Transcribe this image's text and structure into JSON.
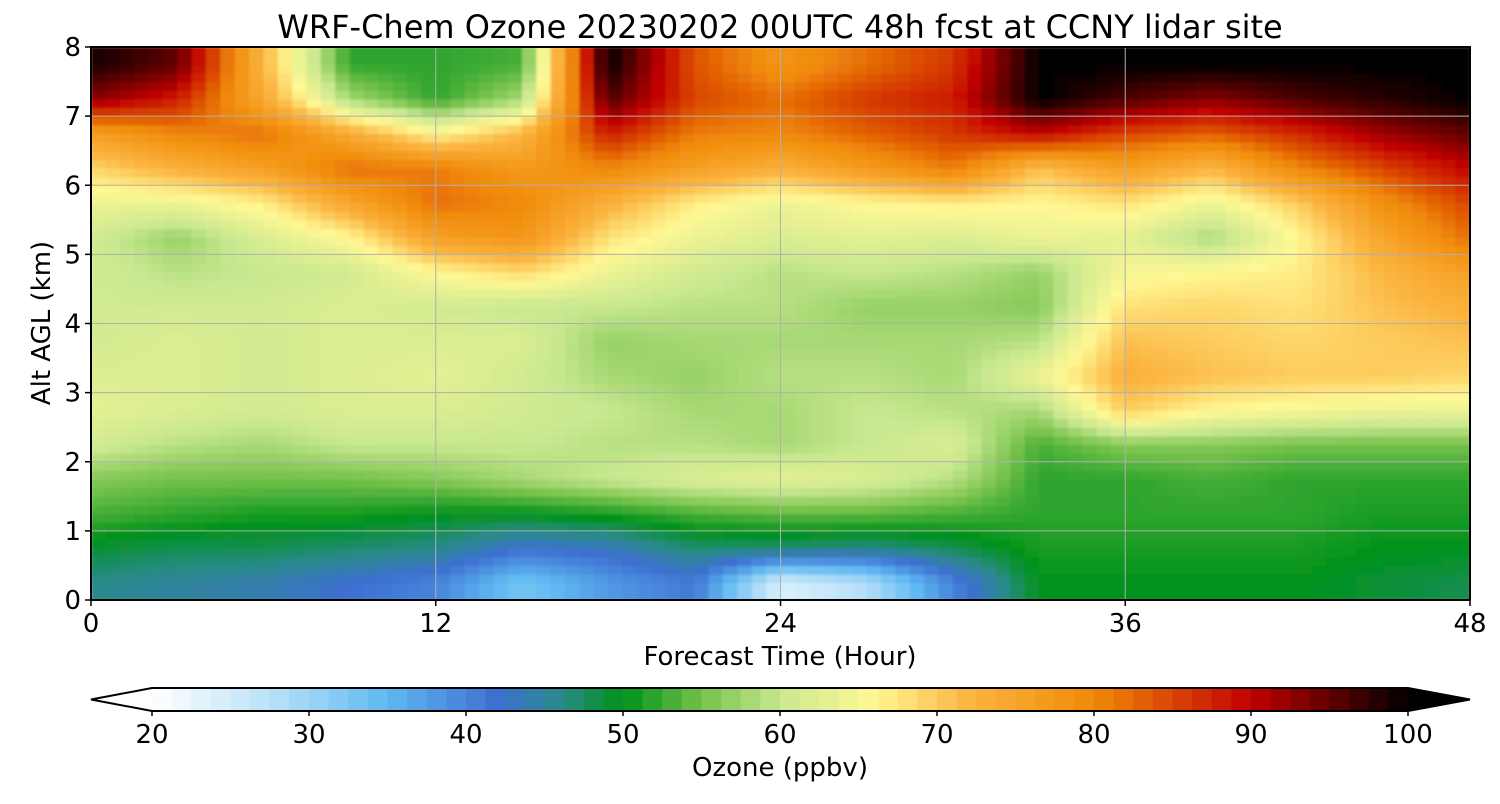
{
  "chart_data": {
    "type": "heatmap",
    "title": "WRF-Chem Ozone  20230202 00UTC 48h fcst at CCNY lidar site",
    "xlabel": "Forecast Time (Hour)",
    "ylabel": "Alt AGL (km)",
    "xlim": [
      0,
      48
    ],
    "ylim": [
      0,
      8
    ],
    "x_ticks": [
      "0",
      "12",
      "24",
      "36",
      "48"
    ],
    "x_tick_values": [
      0,
      12,
      24,
      36,
      48
    ],
    "y_ticks": [
      "0",
      "1",
      "2",
      "3",
      "4",
      "5",
      "6",
      "7",
      "8"
    ],
    "y_tick_values": [
      0,
      1,
      2,
      3,
      4,
      5,
      6,
      7,
      8
    ],
    "grid": true,
    "x": [
      0,
      3,
      6,
      9,
      12,
      15,
      18,
      21,
      24,
      27,
      30,
      33,
      36,
      39,
      42,
      45,
      48
    ],
    "y": [
      0.25,
      0.75,
      1.25,
      1.75,
      2.25,
      2.75,
      3.25,
      3.75,
      4.25,
      4.75,
      5.25,
      5.75,
      6.25,
      6.75,
      7.25,
      7.75
    ],
    "z": [
      [
        46,
        45,
        44,
        42,
        40,
        33,
        38,
        41,
        24,
        28,
        40,
        50,
        50,
        50,
        50,
        49,
        48
      ],
      [
        49,
        48,
        48,
        47,
        46,
        42,
        43,
        47,
        47,
        46,
        48,
        51,
        51,
        51,
        51,
        50,
        50
      ],
      [
        53,
        52,
        51,
        51,
        50,
        50,
        51,
        53,
        54,
        54,
        53,
        52,
        52,
        52,
        52,
        51,
        51
      ],
      [
        56,
        55,
        55,
        55,
        56,
        58,
        60,
        62,
        63,
        62,
        59,
        52,
        52,
        53,
        52,
        52,
        52
      ],
      [
        61,
        59,
        58,
        60,
        60,
        60,
        59,
        59,
        58,
        60,
        62,
        53,
        56,
        56,
        55,
        55,
        55
      ],
      [
        63,
        62,
        61,
        62,
        62,
        61,
        60,
        58,
        58,
        60,
        59,
        58,
        70,
        66,
        65,
        64,
        64
      ],
      [
        62,
        62,
        61,
        62,
        63,
        61,
        58,
        57,
        59,
        59,
        58,
        64,
        73,
        71,
        70,
        70,
        69
      ],
      [
        61,
        62,
        61,
        62,
        62,
        62,
        57,
        58,
        58,
        58,
        58,
        59,
        71,
        70,
        69,
        70,
        71
      ],
      [
        61,
        61,
        61,
        62,
        61,
        60,
        60,
        59,
        59,
        57,
        57,
        56,
        68,
        69,
        68,
        71,
        73
      ],
      [
        61,
        59,
        60,
        61,
        66,
        69,
        64,
        61,
        59,
        60,
        59,
        57,
        65,
        66,
        67,
        72,
        76
      ],
      [
        61,
        57,
        62,
        66,
        76,
        78,
        68,
        64,
        62,
        63,
        62,
        64,
        63,
        58,
        66,
        75,
        82
      ],
      [
        64,
        64,
        67,
        75,
        82,
        80,
        73,
        67,
        64,
        66,
        67,
        66,
        68,
        64,
        70,
        79,
        85
      ],
      [
        69,
        73,
        76,
        82,
        81,
        77,
        80,
        76,
        73,
        77,
        81,
        71,
        76,
        72,
        80,
        85,
        90
      ],
      [
        76,
        80,
        82,
        74,
        66,
        72,
        88,
        81,
        80,
        83,
        86,
        90,
        85,
        83,
        87,
        92,
        95
      ],
      [
        93,
        88,
        74,
        58,
        52,
        58,
        96,
        85,
        82,
        86,
        88,
        100,
        96,
        93,
        96,
        98,
        100
      ],
      [
        99,
        95,
        72,
        52,
        52,
        53,
        100,
        84,
        78,
        82,
        86,
        100,
        100,
        100,
        100,
        100,
        100
      ]
    ],
    "colorbar": {
      "label": "Ozone  (ppbv)",
      "min": 20,
      "max": 100,
      "ticks": [
        "20",
        "30",
        "40",
        "50",
        "60",
        "70",
        "80",
        "90",
        "100"
      ],
      "tick_values": [
        20,
        30,
        40,
        50,
        60,
        70,
        80,
        90,
        100
      ],
      "extend": "both",
      "anchor_values": [
        20,
        27,
        35,
        42,
        46,
        50,
        55,
        60,
        66,
        72,
        80,
        90,
        100
      ],
      "anchor_colors": [
        "#ffffff",
        "#bfe4f8",
        "#5fb9f2",
        "#3d6fd1",
        "#2a8a8a",
        "#00921a",
        "#74c14a",
        "#c9e890",
        "#fff894",
        "#fbb541",
        "#f08a08",
        "#c20000",
        "#000000"
      ]
    }
  }
}
